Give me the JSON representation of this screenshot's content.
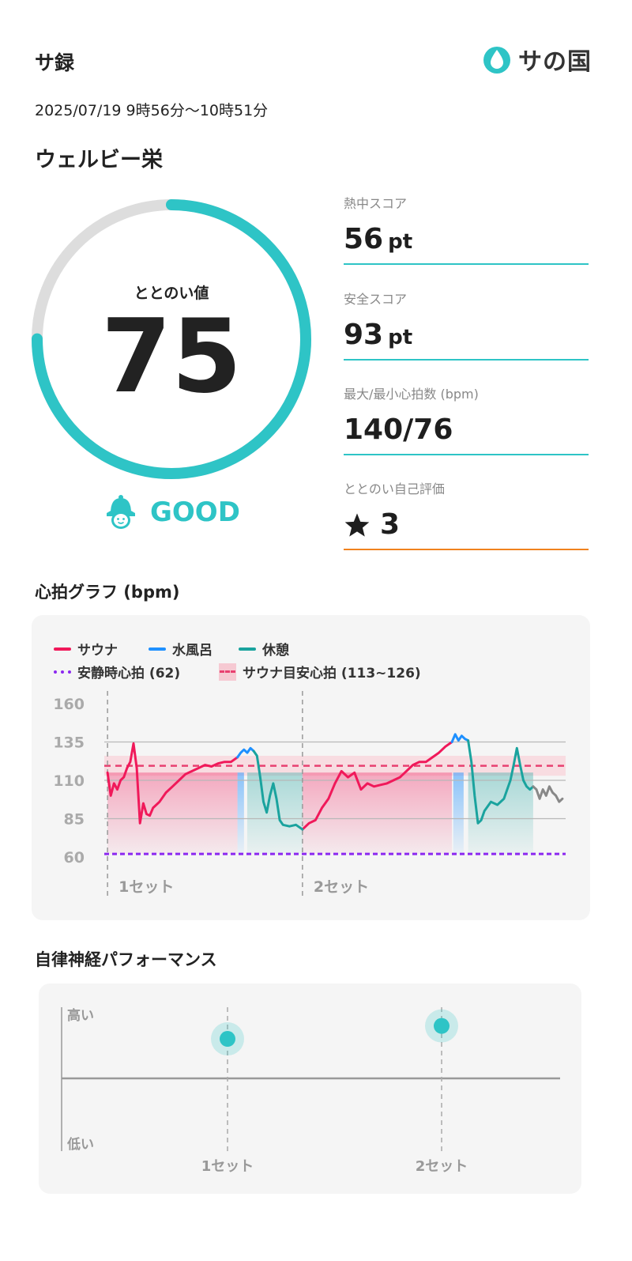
{
  "header": {
    "title": "サ録",
    "logo_text": "サの国",
    "datetime": "2025/07/19 9時56分〜10時51分",
    "facility": "ウェルビー栄"
  },
  "totonoi": {
    "label": "ととのい値",
    "value": "75",
    "fraction": 0.75,
    "rating": "GOOD"
  },
  "metrics": [
    {
      "label": "熱中スコア",
      "value": "56",
      "unit": "pt"
    },
    {
      "label": "安全スコア",
      "value": "93",
      "unit": "pt"
    },
    {
      "label": "最大/最小心拍数 (bpm)",
      "value": "140/76",
      "unit": ""
    },
    {
      "label": "ととのい自己評価",
      "value": "3",
      "icon": "star-icon"
    }
  ],
  "heart_section": {
    "title": "心拍グラフ (bpm)",
    "legend": {
      "sauna": "サウナ",
      "water": "水風呂",
      "rest": "休憩",
      "resting_hr": "安静時心拍 (62)",
      "target_hr": "サウナ目安心拍 (113~126)"
    },
    "set_labels": [
      "1セット",
      "2セット"
    ]
  },
  "colors": {
    "accent": "#2ec4c6",
    "sauna": "#f0195a",
    "water": "#1e90ff",
    "rest": "#1aa39e",
    "resting": "#8c28f0",
    "target": "#e84070",
    "orange": "#f0821e"
  },
  "chart_data": [
    {
      "type": "line",
      "title": "心拍グラフ (bpm)",
      "ylabel": "",
      "ylim": [
        60,
        160
      ],
      "yticks": [
        160,
        135,
        110,
        85,
        60
      ],
      "resting_hr": 62,
      "target_range": [
        113,
        126
      ],
      "x_unit": "minutes from start",
      "series": [
        {
          "name": "サウナ",
          "segments": [
            {
              "x": [
                0,
                0.5,
                1,
                1.5,
                2,
                2.5,
                3,
                3.5,
                4,
                4.5,
                5,
                5.5,
                6,
                6.5,
                7,
                8,
                9,
                10,
                11,
                12,
                13,
                14,
                15,
                16,
                17,
                18,
                19,
                20
              ],
              "y": [
                115,
                100,
                108,
                104,
                110,
                112,
                118,
                122,
                134,
                118,
                82,
                95,
                88,
                87,
                92,
                96,
                102,
                106,
                110,
                114,
                116,
                118,
                120,
                119,
                121,
                122,
                122,
                125
              ]
            },
            {
              "x": [
                30,
                31,
                32,
                33,
                34,
                35,
                36,
                37,
                38,
                39,
                40,
                41,
                42,
                43,
                44,
                45,
                46,
                47,
                48,
                49,
                50,
                51,
                52,
                53
              ],
              "y": [
                78,
                82,
                84,
                92,
                98,
                108,
                116,
                112,
                115,
                104,
                108,
                106,
                107,
                108,
                110,
                112,
                116,
                120,
                122,
                122,
                125,
                128,
                132,
                135
              ]
            }
          ]
        },
        {
          "name": "水風呂",
          "segments": [
            {
              "x": [
                20,
                20.5,
                21,
                21.5,
                22,
                22.5
              ],
              "y": [
                125,
                128,
                130,
                128,
                131,
                129
              ]
            },
            {
              "x": [
                53,
                53.5,
                54,
                54.5,
                55,
                55.5
              ],
              "y": [
                135,
                140,
                136,
                139,
                137,
                136
              ]
            }
          ]
        },
        {
          "name": "休憩",
          "segments": [
            {
              "x": [
                22.5,
                23,
                23.5,
                24,
                24.5,
                25,
                25.5,
                26,
                26.5,
                27,
                28,
                29,
                30
              ],
              "y": [
                129,
                126,
                112,
                96,
                89,
                100,
                108,
                98,
                84,
                81,
                80,
                81,
                78
              ]
            },
            {
              "x": [
                55.5,
                56,
                56.5,
                57,
                57.5,
                58,
                59,
                60,
                61,
                62,
                62.5,
                63,
                63.5,
                64,
                64.5,
                65,
                65.5
              ],
              "y": [
                136,
                122,
                100,
                82,
                84,
                90,
                96,
                94,
                98,
                110,
                120,
                131,
                120,
                110,
                106,
                104,
                106
              ]
            }
          ]
        },
        {
          "name": "",
          "segments": [
            {
              "x": [
                65.5,
                66,
                66.5,
                67,
                67.5,
                68,
                68.5,
                69,
                69.5,
                70
              ],
              "y": [
                106,
                104,
                98,
                104,
                100,
                106,
                102,
                100,
                96,
                98
              ]
            }
          ]
        }
      ],
      "phases": [
        {
          "name": "サウナ",
          "x": [
            0,
            20
          ]
        },
        {
          "name": "水風呂",
          "x": [
            20,
            21
          ]
        },
        {
          "name": "休憩",
          "x": [
            21.5,
            30
          ]
        },
        {
          "name": "サウナ",
          "x": [
            30,
            53
          ]
        },
        {
          "name": "水風呂",
          "x": [
            53.2,
            54.8
          ]
        },
        {
          "name": "休憩",
          "x": [
            55.5,
            65.5
          ]
        }
      ],
      "set_markers": [
        {
          "label": "1セット",
          "x": 0
        },
        {
          "label": "2セット",
          "x": 30
        }
      ],
      "xlim": [
        -0.5,
        70.5
      ]
    },
    {
      "type": "scatter",
      "title": "自律神経パフォーマンス",
      "categories": [
        "1セット",
        "2セット"
      ],
      "values": [
        0.78,
        0.87
      ],
      "ylabels": {
        "top": "高い",
        "bottom": "低い"
      }
    }
  ],
  "autonomic_section": {
    "title": "自律神経パフォーマンス",
    "y_high": "高い",
    "y_low": "低い",
    "set_labels": [
      "1セット",
      "2セット"
    ]
  }
}
